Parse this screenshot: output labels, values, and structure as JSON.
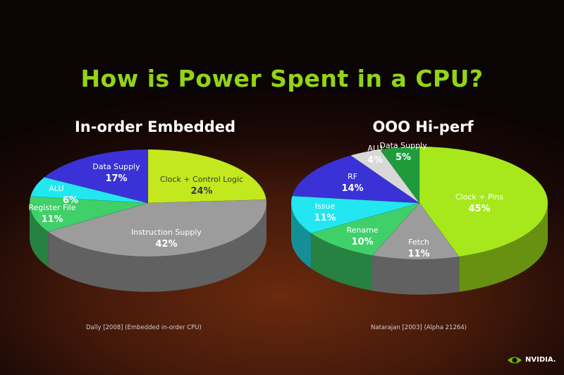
{
  "slide": {
    "title": "How is Power Spent in a CPU?"
  },
  "branding": {
    "logo_text": "NVIDIA.",
    "logo_icon": "nvidia-eye-icon",
    "logo_color": "#76b900"
  },
  "chart_data": [
    {
      "type": "pie",
      "title": "In-order Embedded",
      "citation": "Dally [2008] (Embedded in-order CPU)",
      "slices": [
        {
          "label": "Clock + Control Logic",
          "pct_label": "24%",
          "value": 24,
          "color": "#c4e81e",
          "label_color": "#3a3a3a"
        },
        {
          "label": "Instruction Supply",
          "pct_label": "42%",
          "value": 42,
          "color": "#9c9c9c",
          "label_color": "#ffffff"
        },
        {
          "label": "Register File",
          "pct_label": "11%",
          "value": 11,
          "color": "#3fd069",
          "label_color": "#ffffff"
        },
        {
          "label": "ALU",
          "pct_label": "6%",
          "value": 6,
          "color": "#22e7f0",
          "label_color": "#ffffff"
        },
        {
          "label": "Data Supply",
          "pct_label": "17%",
          "value": 17,
          "color": "#3a32d6",
          "label_color": "#ffffff"
        }
      ]
    },
    {
      "type": "pie",
      "title": "OOO Hi-perf",
      "citation": "Natarajan [2003] (Alpha 21264)",
      "slices": [
        {
          "label": "Clock + Pins",
          "pct_label": "45%",
          "value": 45,
          "color": "#a7e81c",
          "label_color": "#ffffff"
        },
        {
          "label": "Fetch",
          "pct_label": "11%",
          "value": 11,
          "color": "#9c9c9c",
          "label_color": "#ffffff"
        },
        {
          "label": "Rename",
          "pct_label": "10%",
          "value": 10,
          "color": "#3fd069",
          "label_color": "#ffffff"
        },
        {
          "label": "Issue",
          "pct_label": "11%",
          "value": 11,
          "color": "#22e7f0",
          "label_color": "#ffffff"
        },
        {
          "label": "RF",
          "pct_label": "14%",
          "value": 14,
          "color": "#3a32d6",
          "label_color": "#ffffff"
        },
        {
          "label": "ALU",
          "pct_label": "4%",
          "value": 4,
          "color": "#d8d8d8",
          "label_color": "#ffffff"
        },
        {
          "label": "Data Supply",
          "pct_label": "5%",
          "value": 5,
          "color": "#1f9b3c",
          "label_color": "#ffffff"
        }
      ]
    }
  ]
}
